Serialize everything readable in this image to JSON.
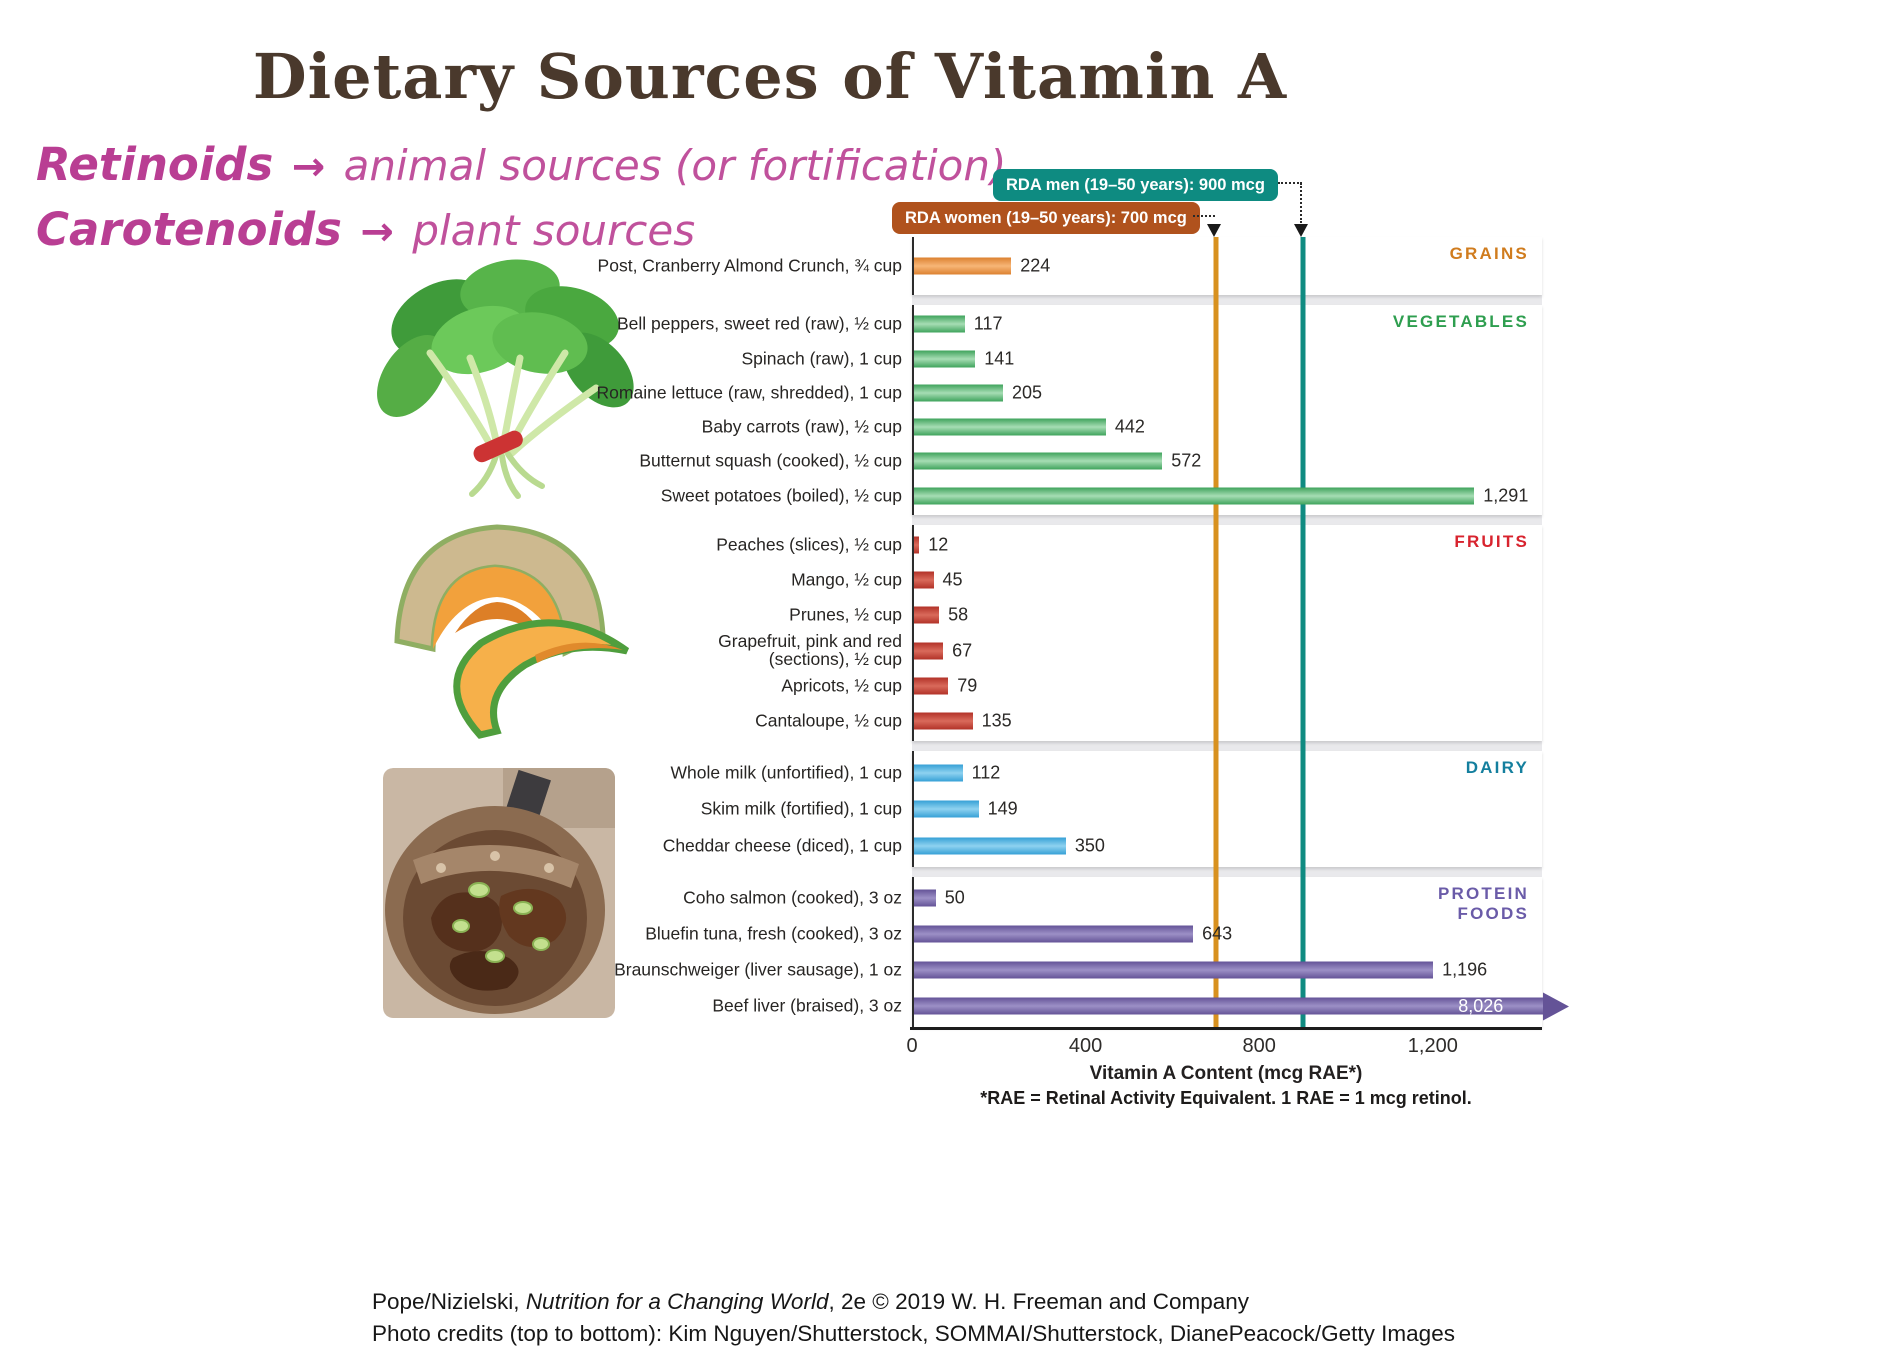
{
  "title": "Dietary Sources of Vitamin A",
  "intro": {
    "line1": {
      "term": "Retinoids",
      "arrow": "→",
      "text": "animal sources (or fortification)"
    },
    "line2": {
      "term": "Carotenoids",
      "arrow": "→",
      "text": "plant sources"
    }
  },
  "rda": {
    "men": {
      "label": "RDA men (19–50 years): 900 mcg",
      "value": 900,
      "color": "#0E8B81"
    },
    "women": {
      "label": "RDA women (19–50 years): 700 mcg",
      "value": 700,
      "color": "#B0521D"
    }
  },
  "chart_data": {
    "type": "bar",
    "orientation": "horizontal",
    "title": "",
    "xlabel": "Vitamin A Content (mcg RAE*)",
    "footnote": "*RAE = Retinal Activity Equivalent. 1 RAE = 1 mcg retinol.",
    "x_ticks": [
      0,
      400,
      800,
      1200
    ],
    "x_tick_labels": [
      "0",
      "400",
      "800",
      "1,200"
    ],
    "x_max": 1447,
    "grid": false,
    "reference_lines": [
      {
        "id": "rda-women",
        "value": 700,
        "color": "#D8911F",
        "label": "RDA women (19–50 years): 700 mcg"
      },
      {
        "id": "rda-men",
        "value": 900,
        "color": "#0F8B81",
        "label": "RDA men (19–50 years): 900 mcg"
      }
    ],
    "groups": [
      {
        "category": "GRAINS",
        "label_color": "#D07C1E",
        "bar_edge": "#DC8130",
        "bar_mid": "#F7B677",
        "items": [
          {
            "label": "Post, Cranberry Almond Crunch, ¾ cup",
            "value": 224,
            "display": "224"
          }
        ]
      },
      {
        "category": "VEGETABLES",
        "label_color": "#2E9E4F",
        "bar_edge": "#3FA35C",
        "bar_mid": "#A6DDB4",
        "items": [
          {
            "label": "Bell peppers, sweet red (raw), ½ cup",
            "value": 117,
            "display": "117"
          },
          {
            "label": "Spinach (raw), 1 cup",
            "value": 141,
            "display": "141"
          },
          {
            "label": "Romaine lettuce (raw, shredded), 1 cup",
            "value": 205,
            "display": "205"
          },
          {
            "label": "Baby carrots (raw), ½ cup",
            "value": 442,
            "display": "442"
          },
          {
            "label": "Butternut squash (cooked), ½ cup",
            "value": 572,
            "display": "572"
          },
          {
            "label": "Sweet potatoes (boiled), ½ cup",
            "value": 1291,
            "display": "1,291"
          }
        ]
      },
      {
        "category": "FRUITS",
        "label_color": "#D8232E",
        "bar_edge": "#B23228",
        "bar_mid": "#D96A5B",
        "items": [
          {
            "label": "Peaches (slices), ½ cup",
            "value": 12,
            "display": "12"
          },
          {
            "label": "Mango, ½ cup",
            "value": 45,
            "display": "45"
          },
          {
            "label": "Prunes, ½ cup",
            "value": 58,
            "display": "58"
          },
          {
            "label": "Grapefruit, pink and red\n(sections), ½ cup",
            "value": 67,
            "display": "67"
          },
          {
            "label": "Apricots, ½ cup",
            "value": 79,
            "display": "79"
          },
          {
            "label": "Cantaloupe, ½ cup",
            "value": 135,
            "display": "135"
          }
        ]
      },
      {
        "category": "DAIRY",
        "label_color": "#147F9E",
        "bar_edge": "#36A0D6",
        "bar_mid": "#8ED2F0",
        "items": [
          {
            "label": "Whole milk (unfortified), 1 cup",
            "value": 112,
            "display": "112"
          },
          {
            "label": "Skim milk (fortified), 1 cup",
            "value": 149,
            "display": "149"
          },
          {
            "label": "Cheddar cheese (diced), 1 cup",
            "value": 350,
            "display": "350"
          }
        ]
      },
      {
        "category": "PROTEIN FOODS",
        "label_color": "#6A5BA8",
        "bar_edge": "#645397",
        "bar_mid": "#9C90C6",
        "items": [
          {
            "label": "Coho salmon (cooked), 3 oz",
            "value": 50,
            "display": "50"
          },
          {
            "label": "Bluefin tuna, fresh (cooked), 3 oz",
            "value": 643,
            "display": "643"
          },
          {
            "label": "Braunschweiger (liver sausage), 1 oz",
            "value": 1196,
            "display": "1,196"
          },
          {
            "label": "Beef liver (braised), 3 oz",
            "value": 8026,
            "display": "8,026",
            "off_scale": true
          }
        ]
      }
    ]
  },
  "footer": {
    "line1_prefix": "Pope/Nizielski, ",
    "line1_italic": "Nutrition for a Changing World",
    "line1_suffix": ", 2e © 2019 W. H. Freeman and Company",
    "line2": "Photo credits (top to bottom): Kim Nguyen/Shutterstock, SOMMAI/Shutterstock, DianePeacock/Getty Images"
  }
}
